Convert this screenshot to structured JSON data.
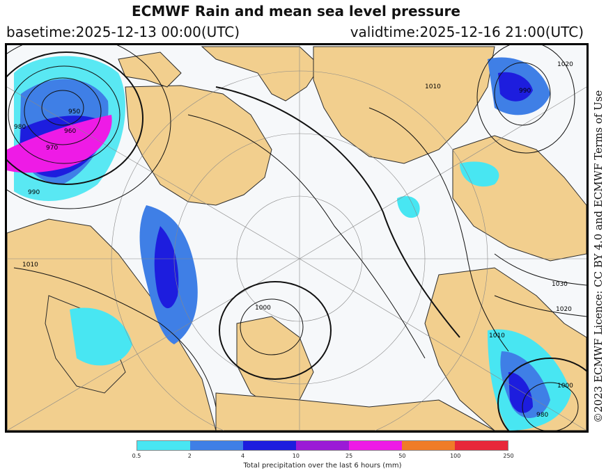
{
  "header": {
    "title": "ECMWF Rain and mean sea level pressure",
    "basetime": "basetime:2025-12-13 00:00(UTC)",
    "validtime": "validtime:2025-12-16 21:00(UTC)"
  },
  "credit": "©2023 ECMWF Licence: CC BY 4.0 and ECMWF Terms of Use",
  "map": {
    "isobar_labels": [
      "950",
      "960",
      "970",
      "980",
      "990",
      "1000",
      "1000",
      "1010",
      "1010",
      "1020",
      "1030",
      "980",
      "990",
      "1010",
      "1020"
    ]
  },
  "legend": {
    "colors": [
      "#48e6f2",
      "#3f7fe6",
      "#1d1dde",
      "#9b1bd6",
      "#ee1be6",
      "#f07c28",
      "#e8283a"
    ],
    "ticks": [
      "0.5",
      "2",
      "4",
      "10",
      "25",
      "50",
      "100",
      "250"
    ],
    "caption": "Total precipitation over the last 6 hours (mm)"
  }
}
